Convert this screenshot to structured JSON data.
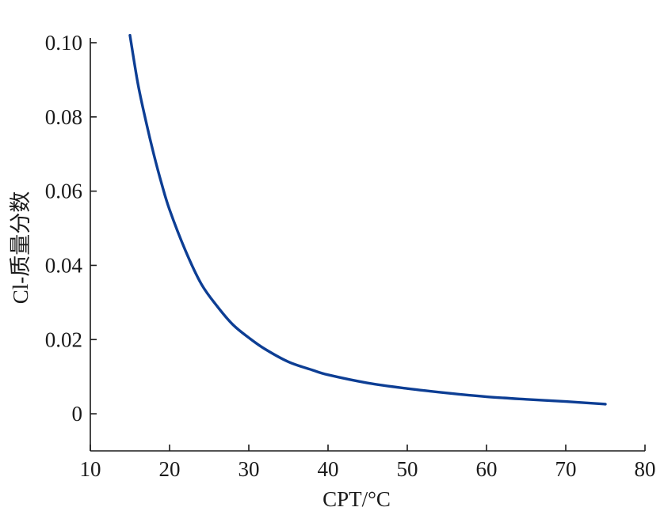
{
  "chart_data": {
    "type": "line",
    "title": "",
    "xlabel": "CPT/°C",
    "ylabel": "Cl-质量分数",
    "xlim": [
      10,
      80
    ],
    "ylim": [
      -0.01,
      0.1
    ],
    "xticks": [
      10,
      20,
      30,
      40,
      50,
      60,
      70,
      80
    ],
    "yticks": [
      0,
      0.02,
      0.04,
      0.06,
      0.08,
      0.1
    ],
    "xtick_labels": [
      "10",
      "20",
      "30",
      "40",
      "50",
      "60",
      "70",
      "80"
    ],
    "ytick_labels": [
      "0",
      "0.02",
      "0.04",
      "0.06",
      "0.08",
      "0.10"
    ],
    "grid": false,
    "legend": "none",
    "series": [
      {
        "color": "#0d3e94",
        "x": [
          15,
          16,
          17,
          18,
          19,
          20,
          22,
          24,
          26,
          28,
          30,
          32,
          35,
          38,
          40,
          45,
          50,
          55,
          60,
          65,
          70,
          75
        ],
        "y": [
          0.102,
          0.089,
          0.079,
          0.07,
          0.062,
          0.055,
          0.044,
          0.035,
          0.029,
          0.024,
          0.0205,
          0.0175,
          0.014,
          0.0118,
          0.0105,
          0.0083,
          0.0068,
          0.0056,
          0.0046,
          0.0039,
          0.0033,
          0.0026
        ]
      }
    ]
  }
}
